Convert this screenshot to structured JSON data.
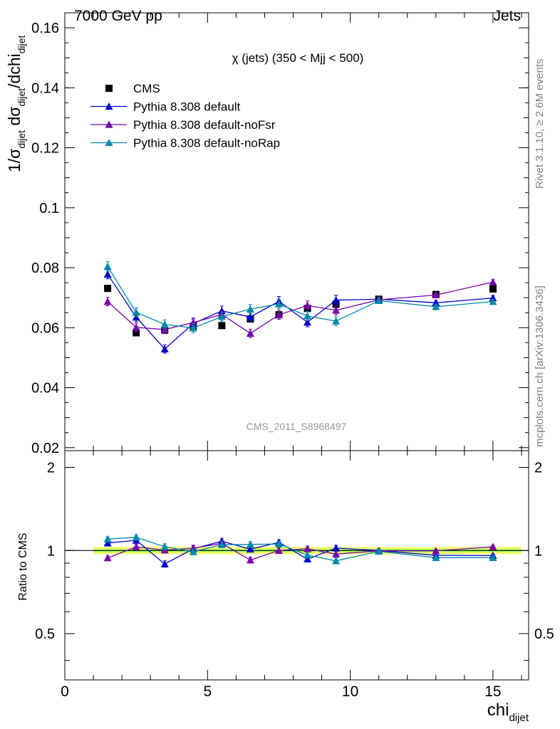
{
  "header": {
    "left": "7000 GeV pp",
    "right": "Jets"
  },
  "side_text": {
    "rivet": "Rivet 3.1.10, ≥ 2.6M events",
    "mcplots": "mcplots.cern.ch [arXiv:1306.3436]"
  },
  "plot_title": "χ (jets) (350 < Mjj <  500)",
  "watermark": "CMS_2011_S8968497",
  "chart_data": {
    "type": "scatter",
    "main": {
      "ylabel": "1/σdijet dσdijet/dchidijet",
      "xlim": [
        0,
        16.25
      ],
      "ylim": [
        0.019,
        0.165
      ],
      "yticks": [
        "0.02",
        "0.04",
        "0.06",
        "0.08",
        "0.1",
        "0.12",
        "0.14",
        "0.16"
      ]
    },
    "ratio": {
      "ylabel": "Ratio to CMS",
      "ylim": [
        0.34,
        2.3
      ],
      "yticks": [
        "0.5",
        "1",
        "2"
      ],
      "band": 0.03
    },
    "xlabel": "chidijet",
    "xticks": [
      "0",
      "5",
      "10",
      "15"
    ],
    "x": [
      1.5,
      2.5,
      3.5,
      4.5,
      5.5,
      6.5,
      7.5,
      8.5,
      9.5,
      11,
      13,
      15
    ],
    "xedges": [
      1,
      2,
      3,
      4,
      5,
      6,
      7,
      8,
      9,
      10,
      12,
      14,
      16
    ],
    "legend_position": "top-left",
    "series": [
      {
        "name": "CMS",
        "color": "#000000",
        "marker": "square",
        "values": [
          0.0731,
          0.0583,
          0.0592,
          0.0605,
          0.0607,
          0.0629,
          0.0643,
          0.0664,
          0.0678,
          0.0695,
          0.0711,
          0.0729
        ],
        "errors": [
          0.0008,
          0.0008,
          0.0008,
          0.0008,
          0.0008,
          0.0008,
          0.0008,
          0.0008,
          0.0008,
          0.0008,
          0.0008,
          0.0008
        ]
      },
      {
        "name": "Pythia 8.308 default",
        "color": "#0000cc",
        "marker": "triangle",
        "values": [
          0.0778,
          0.0635,
          0.0529,
          0.0614,
          0.0656,
          0.0636,
          0.0688,
          0.0618,
          0.0692,
          0.0695,
          0.0683,
          0.0699
        ],
        "errors": [
          0.0015,
          0.0015,
          0.0014,
          0.0015,
          0.0016,
          0.0015,
          0.0016,
          0.0015,
          0.0016,
          0.0008,
          0.0008,
          0.0008
        ]
      },
      {
        "name": "Pythia 8.308 default-noFsr",
        "color": "#7700aa",
        "marker": "triangle",
        "values": [
          0.0687,
          0.0601,
          0.0594,
          0.0617,
          0.0644,
          0.0581,
          0.0643,
          0.0674,
          0.0658,
          0.0693,
          0.0709,
          0.0752
        ],
        "errors": [
          0.0014,
          0.0014,
          0.0014,
          0.0015,
          0.0015,
          0.0014,
          0.0015,
          0.0015,
          0.0015,
          0.0008,
          0.0008,
          0.0009
        ]
      },
      {
        "name": "Pythia 8.308 default-noRap",
        "color": "#0088aa",
        "marker": "triangle",
        "values": [
          0.0804,
          0.0651,
          0.0611,
          0.0599,
          0.0637,
          0.0662,
          0.0679,
          0.0639,
          0.0622,
          0.069,
          0.067,
          0.0687
        ],
        "errors": [
          0.0016,
          0.0015,
          0.0015,
          0.0015,
          0.0015,
          0.0015,
          0.0016,
          0.0015,
          0.0015,
          0.0008,
          0.0008,
          0.0008
        ]
      }
    ]
  }
}
